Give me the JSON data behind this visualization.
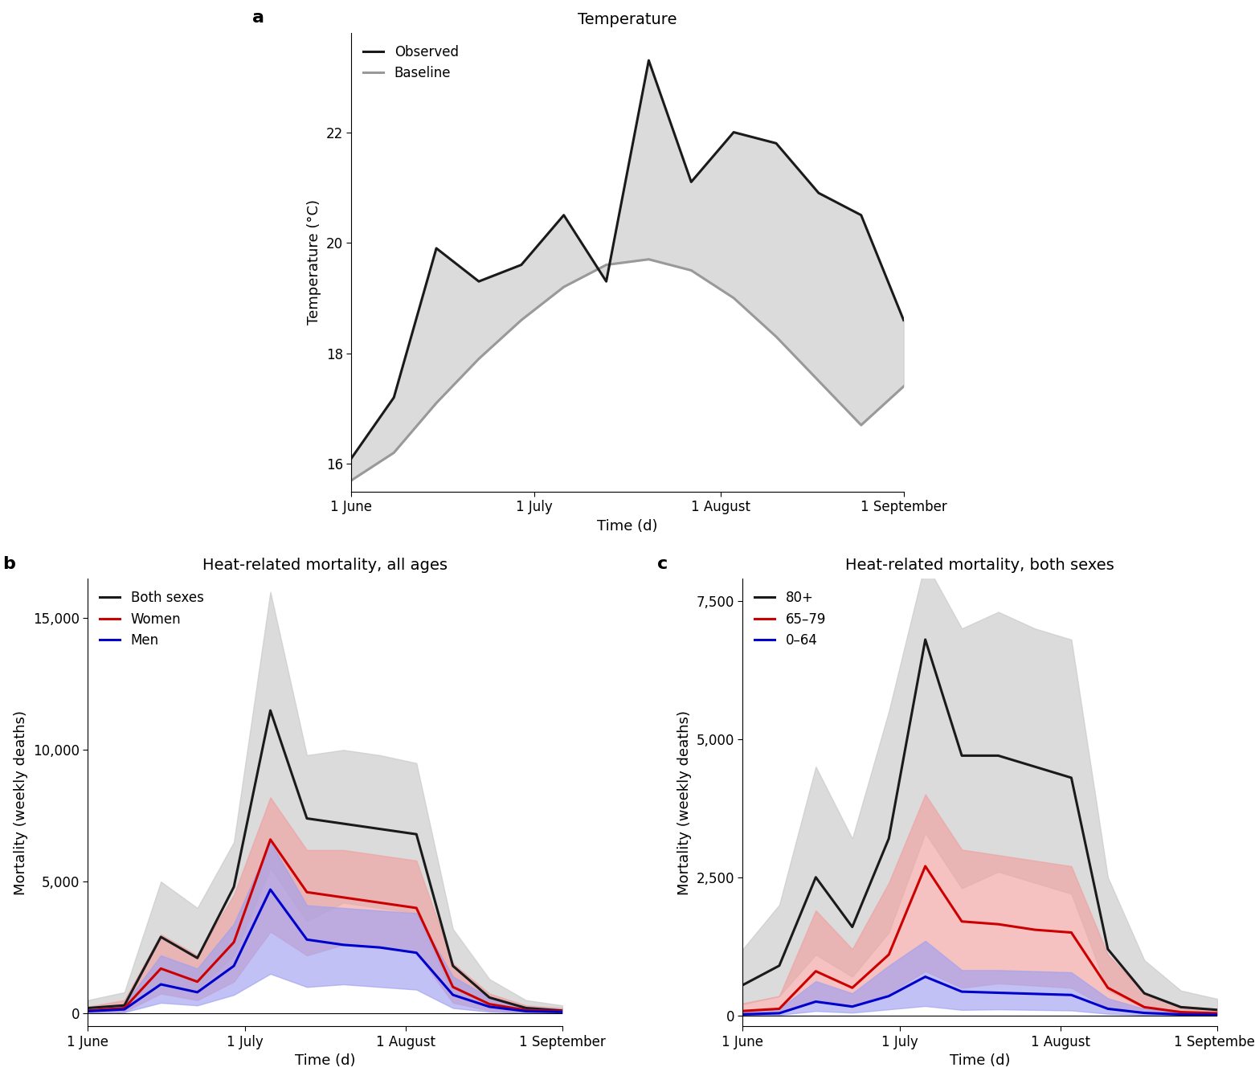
{
  "panel_a_title": "Temperature",
  "panel_b_title": "Heat-related mortality, all ages",
  "panel_c_title": "Heat-related mortality, both sexes",
  "xlabel": "Time (d)",
  "ylabel_a": "Temperature (°C)",
  "ylabel_bc": "Mortality (weekly deaths)",
  "xtick_labels": [
    "1 June",
    "1 July",
    "1 August",
    "1 September"
  ],
  "weeks": [
    0,
    1,
    2,
    3,
    4,
    5,
    6,
    7,
    8,
    9,
    10,
    11,
    12,
    13
  ],
  "xtick_positions": [
    0,
    4.3,
    8.7,
    13
  ],
  "temp_observed": [
    16.1,
    17.2,
    19.9,
    19.3,
    19.6,
    20.5,
    19.3,
    23.3,
    21.1,
    22.0,
    21.8,
    20.9,
    20.5,
    18.6
  ],
  "temp_baseline": [
    15.7,
    16.2,
    17.1,
    17.9,
    18.6,
    19.2,
    19.6,
    19.7,
    19.5,
    19.0,
    18.3,
    17.5,
    16.7,
    17.4
  ],
  "temp_ylim": [
    15.5,
    23.8
  ],
  "temp_yticks": [
    16,
    18,
    20,
    22
  ],
  "b_both_mean": [
    200,
    300,
    2900,
    2100,
    4800,
    11500,
    7400,
    7200,
    7000,
    6800,
    1800,
    600,
    200,
    100
  ],
  "b_both_lo": [
    50,
    100,
    1200,
    900,
    2200,
    5500,
    3500,
    4200,
    4000,
    3800,
    700,
    200,
    50,
    30
  ],
  "b_both_hi": [
    500,
    800,
    5000,
    4000,
    6500,
    16000,
    9800,
    10000,
    9800,
    9500,
    3200,
    1300,
    500,
    300
  ],
  "b_women_mean": [
    100,
    200,
    1700,
    1200,
    2700,
    6600,
    4600,
    4400,
    4200,
    4000,
    1000,
    350,
    120,
    80
  ],
  "b_women_lo": [
    30,
    60,
    750,
    500,
    1200,
    3100,
    2200,
    2600,
    2500,
    2300,
    400,
    100,
    30,
    15
  ],
  "b_women_hi": [
    250,
    500,
    3000,
    2200,
    4500,
    8200,
    6200,
    6200,
    6000,
    5800,
    1900,
    750,
    300,
    200
  ],
  "b_men_mean": [
    80,
    150,
    1100,
    800,
    1800,
    4700,
    2800,
    2600,
    2500,
    2300,
    700,
    250,
    80,
    50
  ],
  "b_men_lo": [
    15,
    40,
    400,
    300,
    700,
    1500,
    1000,
    1100,
    1000,
    900,
    200,
    60,
    15,
    8
  ],
  "b_men_hi": [
    200,
    350,
    2200,
    1700,
    3400,
    6500,
    4100,
    4000,
    3900,
    3800,
    1400,
    600,
    250,
    150
  ],
  "b_ylim": [
    -500,
    16500
  ],
  "b_yticks": [
    0,
    5000,
    10000,
    15000
  ],
  "c_80p_mean": [
    550,
    900,
    2500,
    1600,
    3200,
    6800,
    4700,
    4700,
    4500,
    4300,
    1200,
    400,
    150,
    100
  ],
  "c_80p_lo": [
    200,
    350,
    1100,
    700,
    1500,
    3300,
    2300,
    2600,
    2400,
    2200,
    450,
    130,
    40,
    25
  ],
  "c_80p_hi": [
    1200,
    2000,
    4500,
    3200,
    5500,
    8200,
    7000,
    7300,
    7000,
    6800,
    2500,
    1000,
    450,
    300
  ],
  "c_6579_mean": [
    80,
    120,
    800,
    500,
    1100,
    2700,
    1700,
    1650,
    1550,
    1500,
    500,
    150,
    60,
    40
  ],
  "c_6579_lo": [
    20,
    40,
    300,
    170,
    400,
    800,
    500,
    580,
    540,
    500,
    130,
    40,
    15,
    8
  ],
  "c_6579_hi": [
    220,
    350,
    1900,
    1200,
    2400,
    4000,
    3000,
    2900,
    2800,
    2700,
    1100,
    400,
    170,
    120
  ],
  "c_064_mean": [
    20,
    40,
    250,
    160,
    350,
    700,
    430,
    410,
    390,
    370,
    120,
    45,
    18,
    12
  ],
  "c_064_lo": [
    4,
    10,
    80,
    50,
    110,
    170,
    100,
    110,
    100,
    90,
    30,
    10,
    4,
    2
  ],
  "c_064_hi": [
    60,
    120,
    620,
    400,
    900,
    1350,
    820,
    820,
    800,
    780,
    310,
    120,
    55,
    40
  ],
  "c_ylim": [
    -200,
    7900
  ],
  "c_yticks": [
    0,
    2500,
    5000,
    7500
  ],
  "color_black": "#1a1a1a",
  "color_gray_line": "#999999",
  "color_gray_fill": "#c8c8c8",
  "color_red": "#cc0000",
  "color_red_fill": "#f0a0a0",
  "color_blue": "#0000cc",
  "color_blue_fill": "#a0a0f0",
  "alpha_fill": 0.65
}
